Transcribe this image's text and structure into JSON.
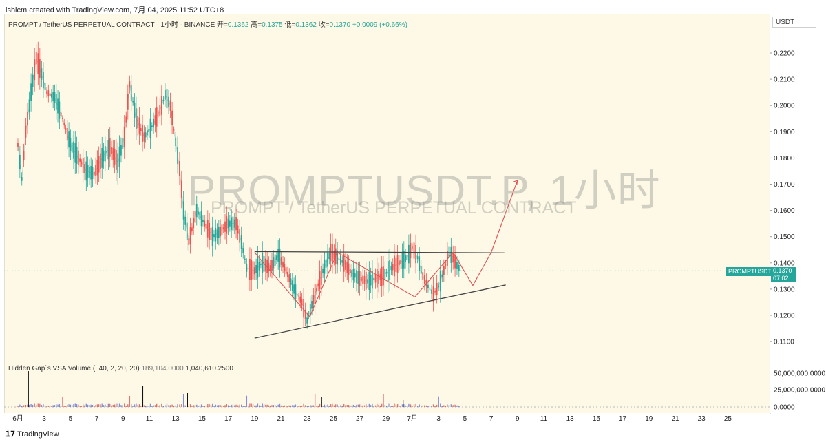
{
  "header": {
    "credit": "ishicm created with TradingView.com, 7月 04, 2025 11:52 UTC+8"
  },
  "legend": {
    "symbol": "PROMPT / TetherUS PERPETUAL CONTRACT · 1小时 · BINANCE",
    "open_label": "开=",
    "open": "0.1362",
    "high_label": "高=",
    "high": "0.1375",
    "low_label": "低=",
    "low": "0.1362",
    "close_label": "收=",
    "close": "0.1370",
    "change": "+0.0009 (+0.66%)"
  },
  "watermark": {
    "main": "PROMPTUSDT.P, 1小时",
    "sub": "PROMPT / TetherUS PERPETUAL CONTRACT"
  },
  "price_axis": {
    "currency": "USDT",
    "last_symbol": "PROMPTUSDT.P",
    "last_price": "0.1370",
    "countdown": "07:02"
  },
  "volume_indicator": {
    "name": "Hidden Gap`s VSA Volume (, 40, 2, 20, 20)",
    "value1": "189,104.0000",
    "value2": "1,040,610.2500",
    "axis_labels": [
      "50,000,000.0000",
      "25,000,000.0000",
      "0.0000"
    ]
  },
  "footer": {
    "brand": "TradingView"
  },
  "colors": {
    "up": "#26a69a",
    "down": "#ef5350",
    "pattern_line": "#444444",
    "projection": "#e05050",
    "background": "#fdf9e6"
  },
  "chart_data": {
    "type": "line",
    "title": "PROMPTUSDT.P, 1小时",
    "ylim": [
      0.105,
      0.23
    ],
    "y_ticks": [
      "0.2200",
      "0.2100",
      "0.2000",
      "0.1900",
      "0.1800",
      "0.1700",
      "0.1600",
      "0.1500",
      "0.1400",
      "0.1300",
      "0.1200",
      "0.1100"
    ],
    "x_ticks": [
      "6月",
      "3",
      "5",
      "7",
      "9",
      "11",
      "13",
      "15",
      "17",
      "19",
      "21",
      "23",
      "25",
      "27",
      "29",
      "7月",
      "3",
      "5",
      "7",
      "9",
      "11",
      "13",
      "15",
      "17",
      "19",
      "21",
      "23",
      "25"
    ],
    "grid": false,
    "series": [
      {
        "x": [
          1.0,
          1.3,
          1.6,
          2.0,
          2.4,
          2.8,
          3.2,
          3.8,
          4.4,
          5.0,
          5.6,
          6.2,
          6.8,
          7.4,
          8.0,
          8.6,
          9.1,
          9.5,
          10.0,
          10.6,
          11.2,
          11.8,
          12.2,
          12.6,
          13.0,
          13.3,
          13.6,
          14.0,
          14.6,
          15.2,
          15.8,
          16.4,
          17.0,
          17.6,
          18.0,
          18.4,
          19.0,
          19.6,
          20.2,
          20.8,
          21.4,
          22.0,
          22.6,
          23.0,
          23.6,
          24.2,
          24.8,
          25.3,
          25.8,
          26.4,
          27.0,
          27.6,
          28.2,
          28.8,
          29.4,
          30.0,
          30.6,
          31.0,
          31.4,
          31.8,
          32.2,
          32.6,
          33.0,
          33.4,
          33.8,
          34.1,
          34.4,
          34.7
        ]
      },
      {
        "y": [
          0.185,
          0.172,
          0.19,
          0.205,
          0.218,
          0.212,
          0.205,
          0.203,
          0.195,
          0.185,
          0.18,
          0.175,
          0.174,
          0.18,
          0.184,
          0.178,
          0.188,
          0.208,
          0.195,
          0.188,
          0.192,
          0.198,
          0.204,
          0.2,
          0.186,
          0.176,
          0.16,
          0.148,
          0.16,
          0.155,
          0.15,
          0.152,
          0.155,
          0.155,
          0.148,
          0.138,
          0.137,
          0.14,
          0.138,
          0.143,
          0.137,
          0.13,
          0.125,
          0.118,
          0.128,
          0.137,
          0.144,
          0.142,
          0.14,
          0.136,
          0.134,
          0.133,
          0.134,
          0.135,
          0.138,
          0.14,
          0.142,
          0.146,
          0.142,
          0.135,
          0.131,
          0.128,
          0.131,
          0.137,
          0.144,
          0.142,
          0.139,
          0.137
        ]
      }
    ]
  }
}
